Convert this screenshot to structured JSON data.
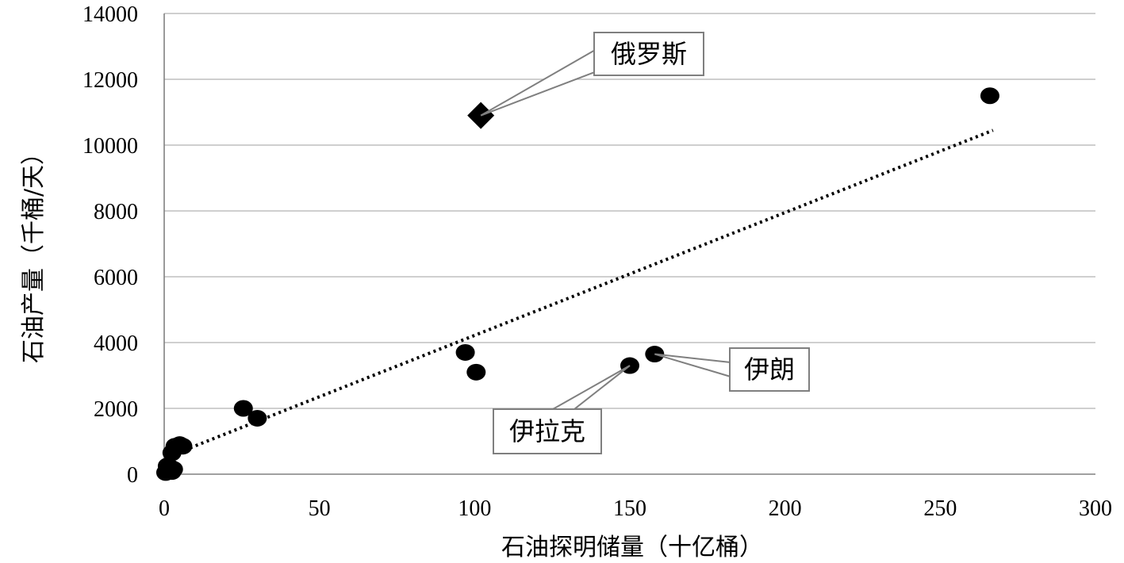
{
  "chart_data": {
    "type": "scatter",
    "xlabel": "石油探明储量（十亿桶）",
    "ylabel": "石油产量（千桶/天）",
    "xlim": [
      0,
      300
    ],
    "ylim": [
      0,
      14000
    ],
    "x_ticks": [
      "0",
      "50",
      "100",
      "150",
      "200",
      "250",
      "300"
    ],
    "y_ticks": [
      "0",
      "2000",
      "4000",
      "6000",
      "8000",
      "10000",
      "12000",
      "14000"
    ],
    "grid": "horizontal",
    "series": [
      {
        "marker": "circle",
        "points": [
          {
            "x": 0.5,
            "y": 50
          },
          {
            "x": 1,
            "y": 250
          },
          {
            "x": 1.5,
            "y": 100
          },
          {
            "x": 2,
            "y": 200
          },
          {
            "x": 2.5,
            "y": 80
          },
          {
            "x": 3,
            "y": 150
          },
          {
            "x": 2.5,
            "y": 650
          },
          {
            "x": 3.5,
            "y": 850
          },
          {
            "x": 5,
            "y": 900
          },
          {
            "x": 6,
            "y": 850
          },
          {
            "x": 25.5,
            "y": 2000
          },
          {
            "x": 30,
            "y": 1700
          },
          {
            "x": 97,
            "y": 3700
          },
          {
            "x": 100.5,
            "y": 3100
          },
          {
            "x": 150,
            "y": 3300
          },
          {
            "x": 158,
            "y": 3650
          },
          {
            "x": 266,
            "y": 11500
          }
        ]
      },
      {
        "marker": "diamond",
        "points": [
          {
            "x": 102,
            "y": 10900
          }
        ]
      }
    ],
    "trendline": {
      "style": "dotted",
      "x": [
        3,
        267
      ],
      "y": [
        600,
        10450
      ]
    },
    "annotations": [
      {
        "text": "俄罗斯",
        "point": {
          "x": 102,
          "y": 10900
        }
      },
      {
        "text": "伊朗",
        "point": {
          "x": 158,
          "y": 3650
        }
      },
      {
        "text": "伊拉克",
        "point": {
          "x": 150,
          "y": 3300
        }
      }
    ],
    "colors": {
      "points": "#000000",
      "grid": "#bfbfbf",
      "axis": "#808080",
      "callout_line": "#7f7f7f"
    }
  }
}
